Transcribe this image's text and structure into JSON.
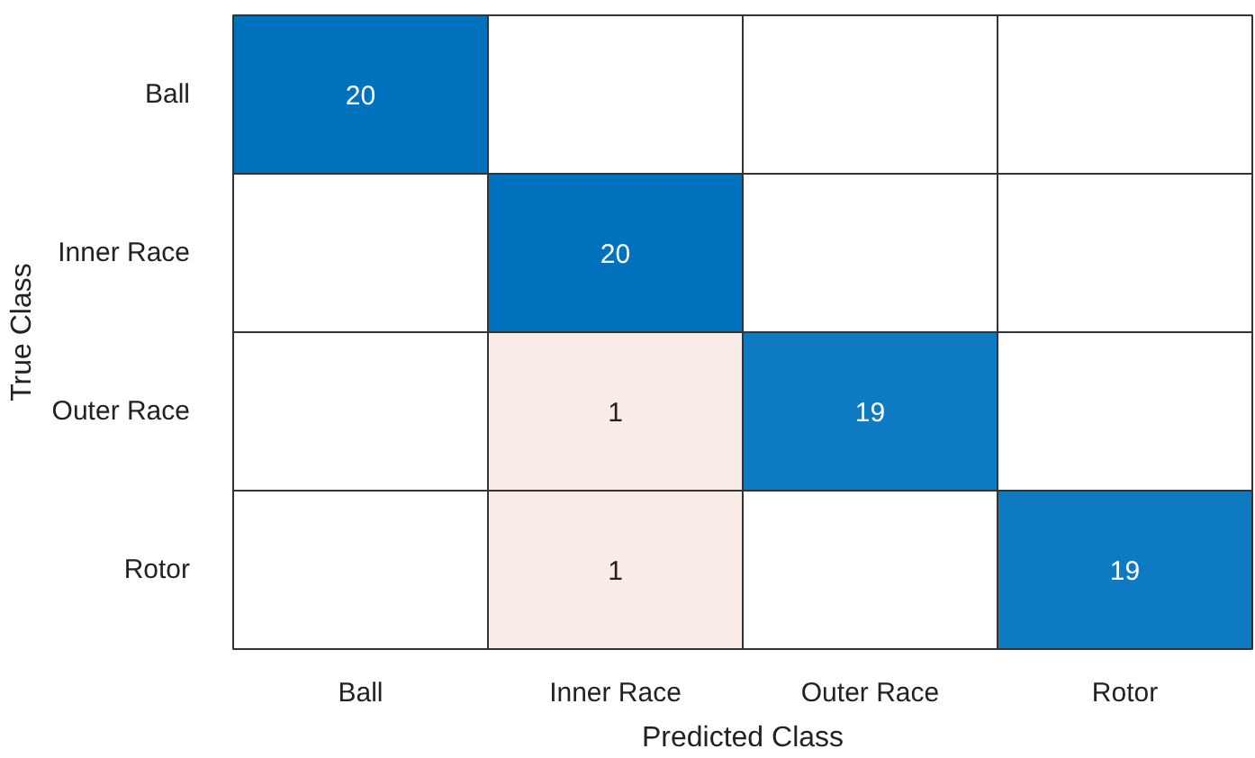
{
  "chart_data": {
    "type": "heatmap",
    "data_labels": true,
    "xlabel": "Predicted Class",
    "ylabel": "True Class",
    "categories": [
      "Ball",
      "Inner Race",
      "Outer Race",
      "Rotor"
    ],
    "y_categories": [
      "Ball",
      "Inner Race",
      "Outer Race",
      "Rotor"
    ],
    "cells": [
      [
        20,
        null,
        null,
        null
      ],
      [
        null,
        20,
        null,
        null
      ],
      [
        null,
        1,
        19,
        null
      ],
      [
        null,
        1,
        null,
        19
      ]
    ],
    "colors": [
      [
        "#0072bd",
        null,
        null,
        null
      ],
      [
        null,
        "#0072bd",
        null,
        null
      ],
      [
        null,
        "#f9ebe6",
        "#0d7ac2",
        null
      ],
      [
        null,
        "#f9ebe6",
        null,
        "#0d7ac2"
      ]
    ]
  }
}
